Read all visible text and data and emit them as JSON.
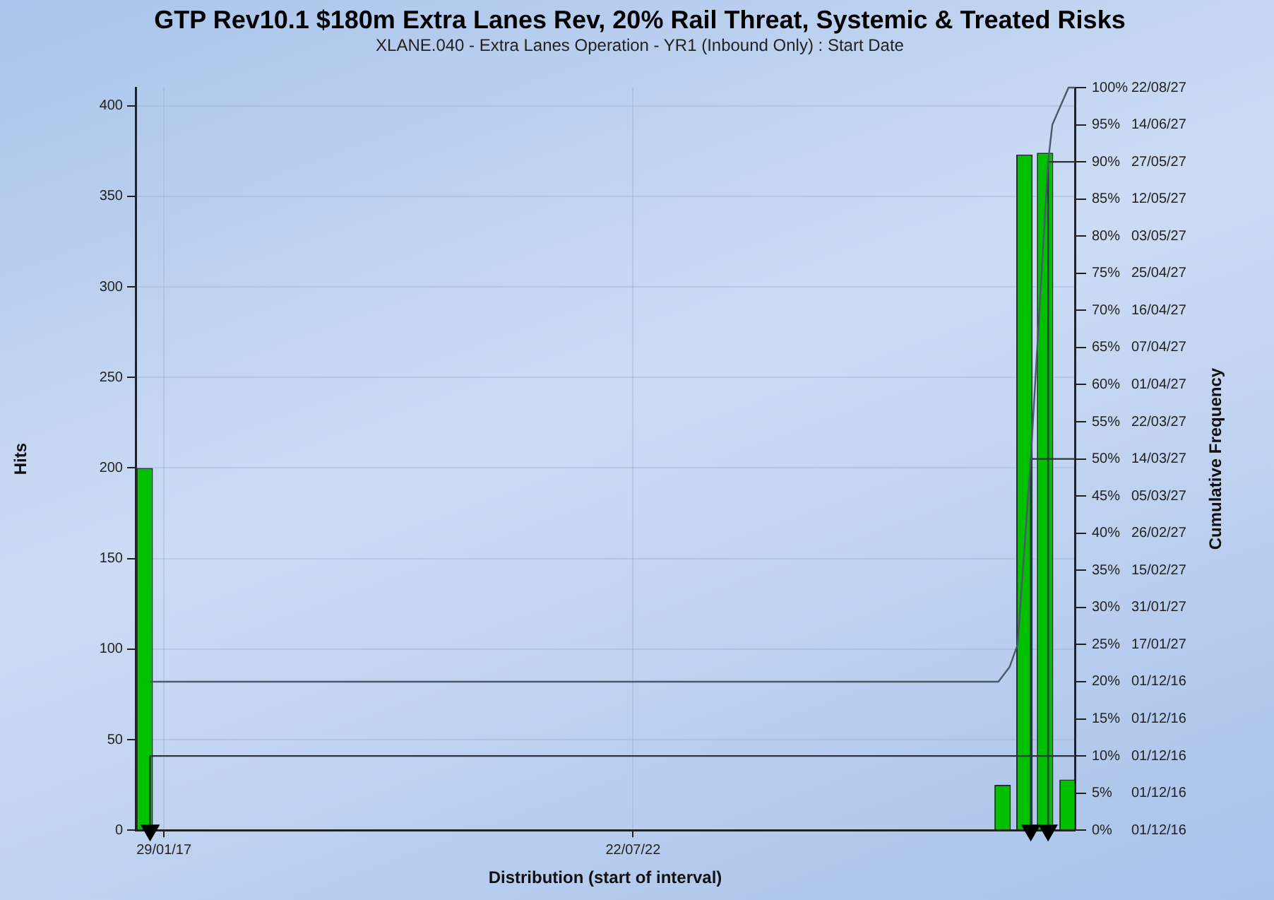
{
  "chart_data": {
    "type": "bar",
    "title": "GTP Rev10.1 $180m Extra Lanes Rev, 20% Rail Threat, Systemic & Treated Risks",
    "subtitle": "XLANE.040 - Extra Lanes Operation - YR1 (Inbound Only) : Start Date",
    "xlabel": "Distribution (start of interval)",
    "ylabel": "Hits",
    "y2label": "Cumulative Frequency",
    "x": [
      "2016-11-08",
      "2026-11-14",
      "2027-02-15",
      "2027-05-14",
      "2027-08-18"
    ],
    "values": [
      200,
      25,
      373,
      374,
      28
    ],
    "color": "#00c000",
    "series": [
      {
        "type": "line",
        "axis": "y2",
        "color": "#4a5a6a",
        "x": [
          "2016-12-01",
          "2026-10-27",
          "2026-12-14",
          "2027-01-17",
          "2027-03-14",
          "2027-05-27",
          "2027-06-14",
          "2027-08-22",
          "2027-09-18"
        ],
        "values": [
          20,
          20,
          22,
          25,
          50,
          90,
          95,
          100,
          100
        ]
      },
      {
        "type": "line",
        "axis": "y2",
        "color": "#2a3440",
        "x": [
          "2016-12-01",
          "2016-12-01",
          "2027-09-18"
        ],
        "values": [
          0,
          10,
          10
        ]
      },
      {
        "type": "line",
        "axis": "y2",
        "color": "#2a3440",
        "x": [
          "2027-03-14",
          "2027-03-14",
          "2027-09-18"
        ],
        "values": [
          0,
          50,
          50
        ]
      },
      {
        "type": "line",
        "axis": "y2",
        "color": "#2a3440",
        "x": [
          "2027-05-27",
          "2027-05-27",
          "2027-09-18"
        ],
        "values": [
          0,
          90,
          90
        ]
      },
      {
        "type": "scatter",
        "axis": "y2",
        "color": "#000000",
        "marker": "triangle",
        "x": [
          "2016-12-01",
          "2027-03-14",
          "2027-05-27"
        ],
        "values": [
          0,
          0,
          0
        ]
      }
    ],
    "xlim": [
      "2016-09-30",
      "2027-09-18"
    ],
    "xticks": [
      {
        "value": "2017-01-29",
        "label": "29/01/17"
      },
      {
        "value": "2022-07-22",
        "label": "22/07/22"
      }
    ],
    "ylim": [
      0,
      410
    ],
    "yticks": [
      0,
      50,
      100,
      150,
      200,
      250,
      300,
      350,
      400
    ],
    "y2lim": [
      0,
      100
    ],
    "y2ticks": [
      {
        "value": 0,
        "label": "0%"
      },
      {
        "value": 5,
        "label": "5%"
      },
      {
        "value": 10,
        "label": "10%"
      },
      {
        "value": 15,
        "label": "15%"
      },
      {
        "value": 20,
        "label": "20%"
      },
      {
        "value": 25,
        "label": "25%"
      },
      {
        "value": 30,
        "label": "30%"
      },
      {
        "value": 35,
        "label": "35%"
      },
      {
        "value": 40,
        "label": "40%"
      },
      {
        "value": 45,
        "label": "45%"
      },
      {
        "value": 50,
        "label": "50%"
      },
      {
        "value": 55,
        "label": "55%"
      },
      {
        "value": 60,
        "label": "60%"
      },
      {
        "value": 65,
        "label": "65%"
      },
      {
        "value": 70,
        "label": "70%"
      },
      {
        "value": 75,
        "label": "75%"
      },
      {
        "value": 80,
        "label": "80%"
      },
      {
        "value": 85,
        "label": "85%"
      },
      {
        "value": 90,
        "label": "90%"
      },
      {
        "value": 95,
        "label": "95%"
      },
      {
        "value": 100,
        "label": "100%"
      }
    ],
    "annotations": [
      "01/12/16",
      "01/12/16",
      "01/12/16",
      "01/12/16",
      "01/12/16",
      "17/01/27",
      "31/01/27",
      "15/02/27",
      "26/02/27",
      "05/03/27",
      "14/03/27",
      "22/03/27",
      "01/04/27",
      "07/04/27",
      "16/04/27",
      "25/04/27",
      "03/05/27",
      "12/05/27",
      "27/05/27",
      "14/06/27",
      "22/08/27"
    ],
    "grid": true
  }
}
